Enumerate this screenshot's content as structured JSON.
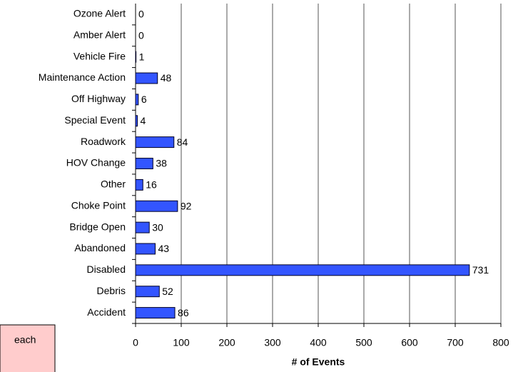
{
  "chart_data": {
    "type": "hbar",
    "x_label": "# of Events",
    "annotation": "each",
    "categories": [
      "Ozone Alert",
      "Amber Alert",
      "Vehicle Fire",
      "Maintenance Action",
      "Off Highway",
      "Special Event",
      "Roadwork",
      "HOV Change",
      "Other",
      "Choke Point",
      "Bridge Open",
      "Abandoned",
      "Disabled",
      "Debris",
      "Accident"
    ],
    "values": [
      0,
      0,
      1,
      48,
      6,
      4,
      84,
      38,
      16,
      92,
      30,
      43,
      731,
      52,
      86
    ],
    "color": "#3355ff",
    "xlim": [
      0,
      800
    ],
    "xticks": [
      0,
      100,
      200,
      300,
      400,
      500,
      600,
      700,
      800
    ],
    "grid": true
  }
}
